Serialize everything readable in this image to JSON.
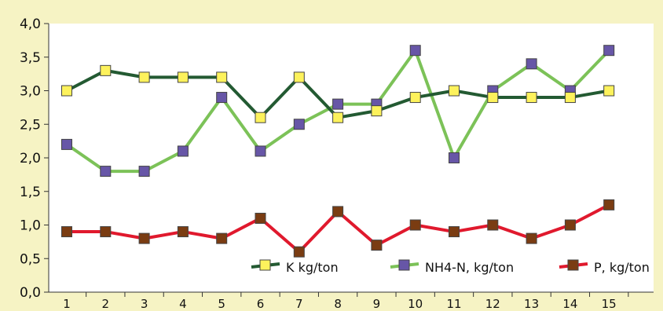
{
  "chart_data": {
    "type": "line",
    "title": "",
    "xlabel": "",
    "ylabel": "",
    "categories": [
      "1",
      "2",
      "3",
      "4",
      "5",
      "6",
      "7",
      "8",
      "9",
      "10",
      "11",
      "12",
      "13",
      "14",
      "15"
    ],
    "ylim": [
      0,
      4
    ],
    "yticks": [
      "0,0",
      "0,5",
      "1,0",
      "1,5",
      "2,0",
      "2,5",
      "3,0",
      "3,5",
      "4,0"
    ],
    "grid": false,
    "legend_position": "bottom-right",
    "background_color": "#f6f3c4",
    "plot_background_color": "#ffffff",
    "series": [
      {
        "name": "K kg/ton",
        "line_color": "#235a32",
        "marker_color": "#fdf25c",
        "values": [
          3.0,
          3.3,
          3.2,
          3.2,
          3.2,
          2.6,
          3.2,
          2.6,
          2.7,
          2.9,
          3.0,
          2.9,
          2.9,
          2.9,
          3.0
        ]
      },
      {
        "name": "NH4-N, kg/ton",
        "line_color": "#7cc258",
        "marker_color": "#6756a7",
        "values": [
          2.2,
          1.8,
          1.8,
          2.1,
          2.9,
          2.1,
          2.5,
          2.8,
          2.8,
          3.6,
          2.0,
          3.0,
          3.4,
          3.0,
          3.6
        ]
      },
      {
        "name": "P, kg/ton",
        "line_color": "#e0192d",
        "marker_color": "#7a3c12",
        "values": [
          0.9,
          0.9,
          0.8,
          0.9,
          0.8,
          1.1,
          0.6,
          1.2,
          0.7,
          1.0,
          0.9,
          1.0,
          0.8,
          1.0,
          1.3
        ]
      }
    ]
  }
}
